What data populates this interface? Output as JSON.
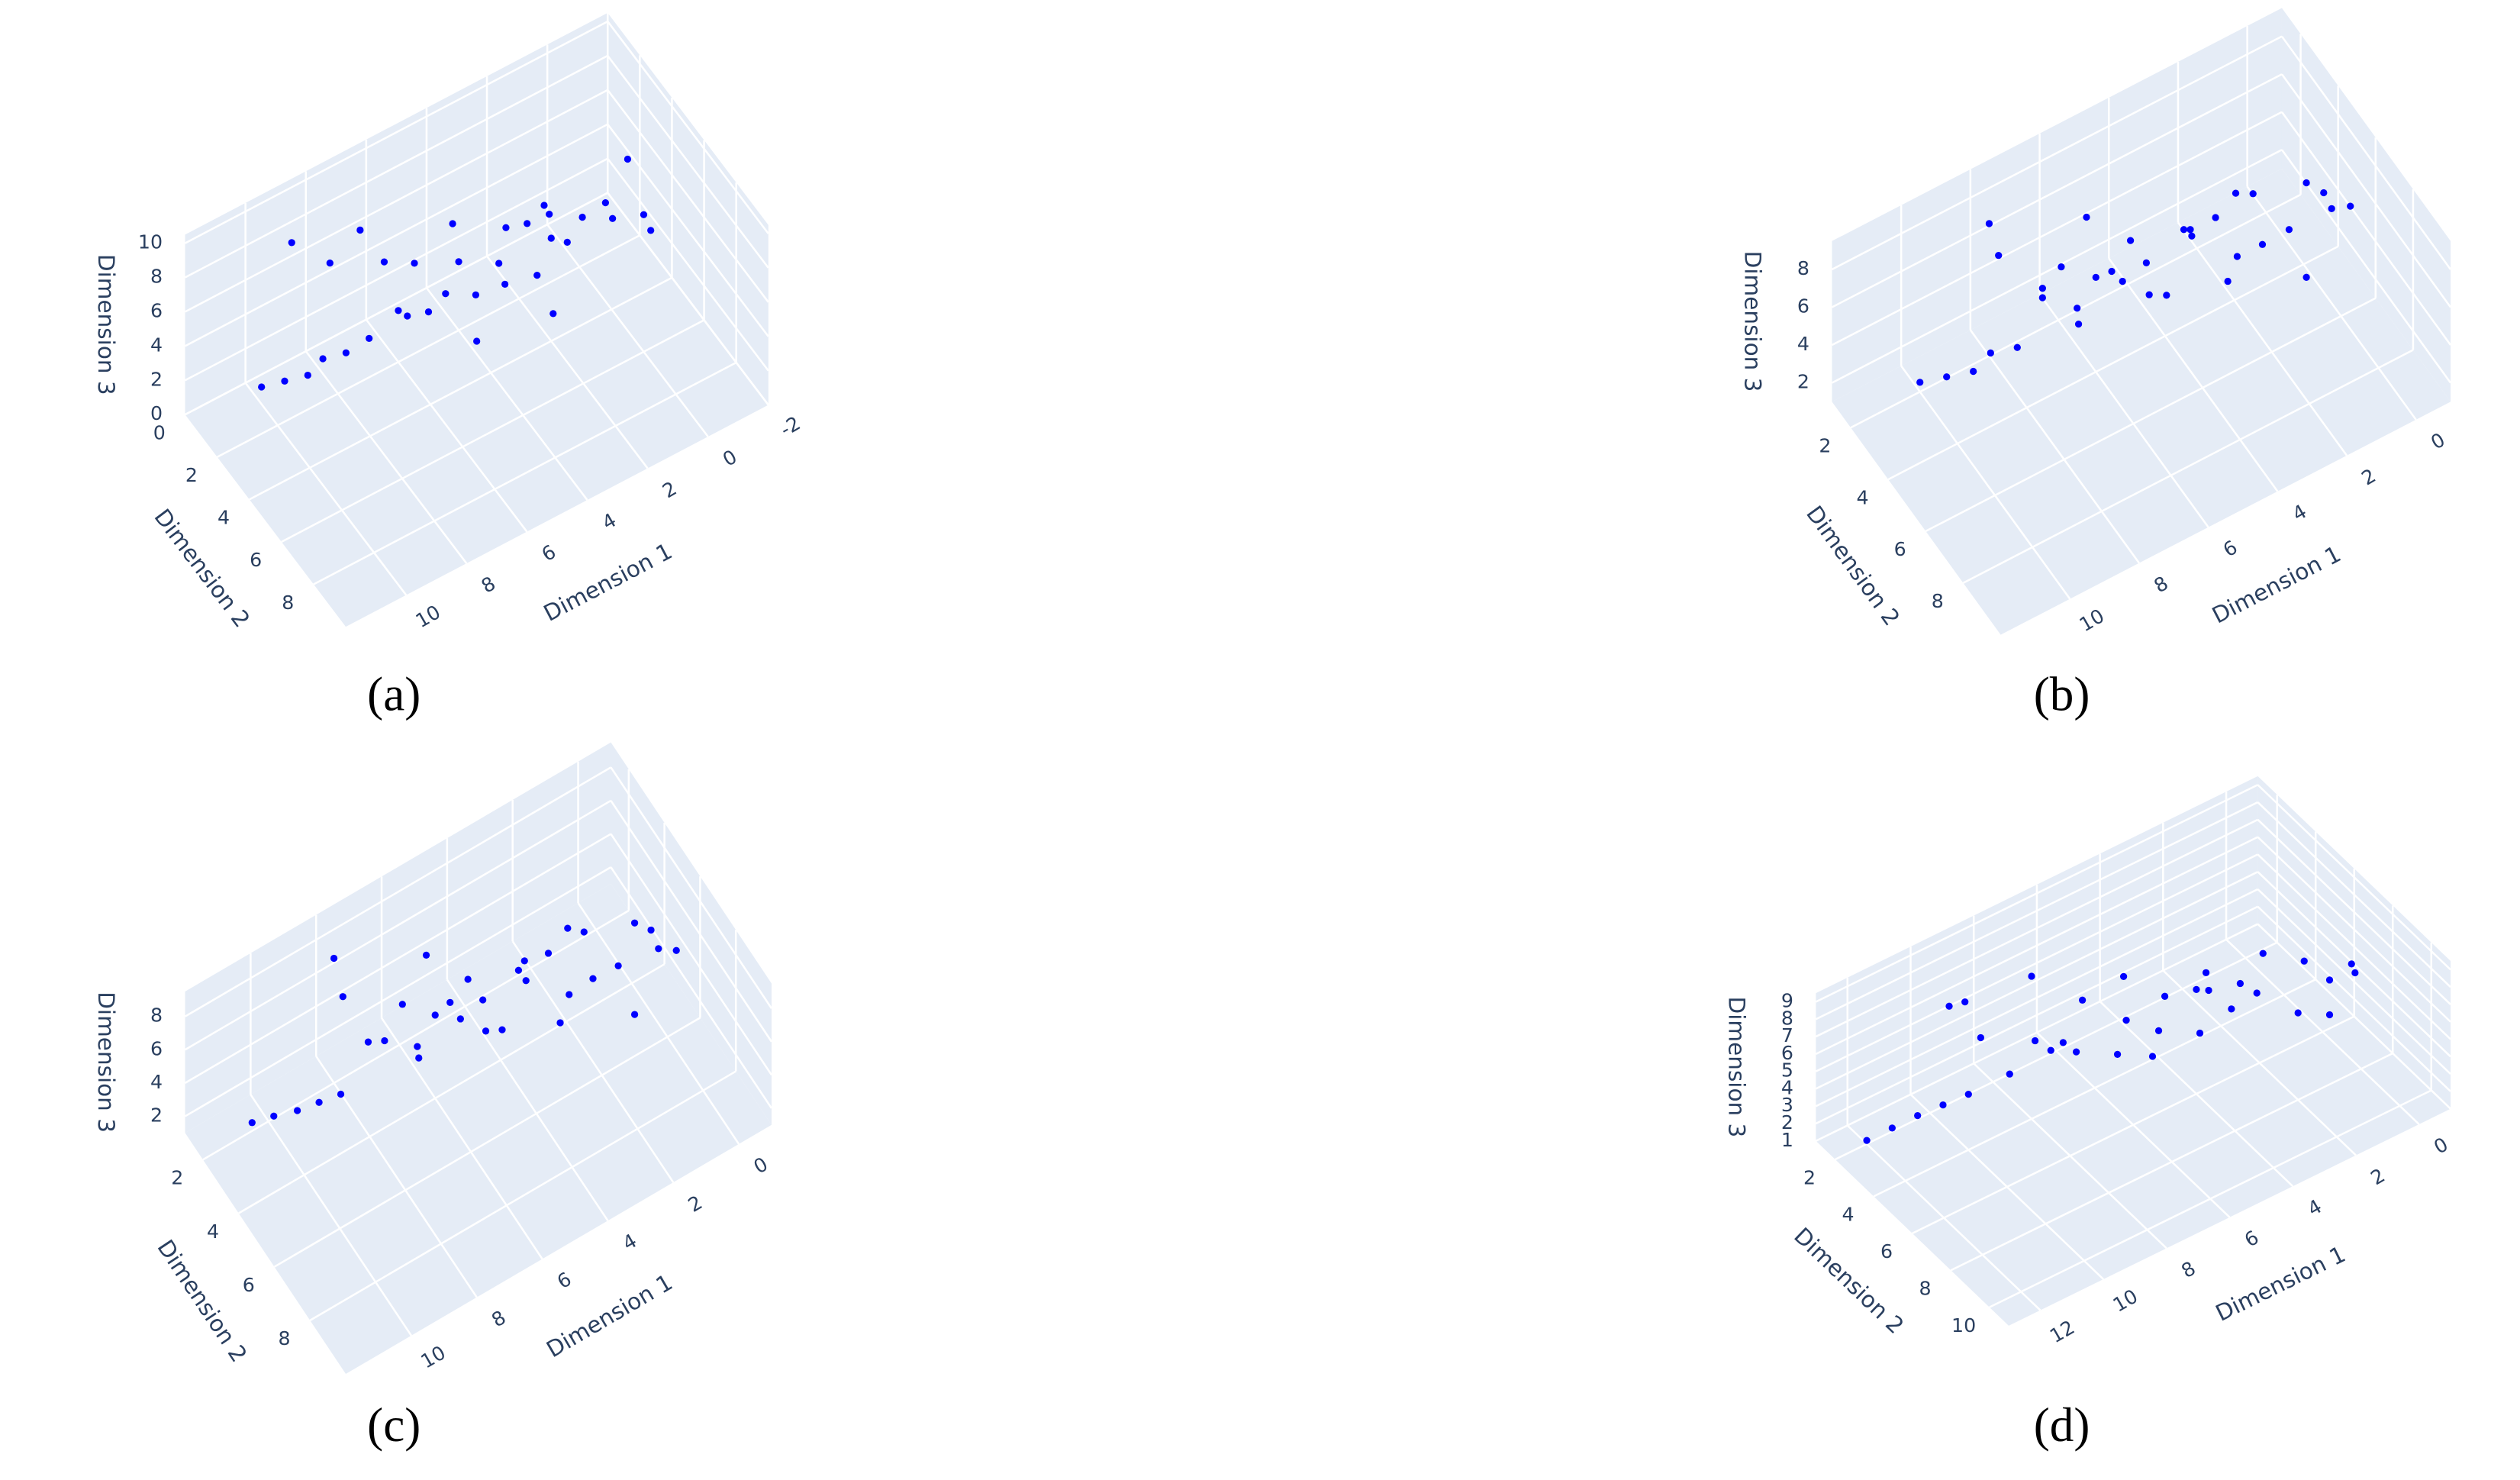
{
  "chart_data": [
    {
      "type": "scatter3d",
      "panel_label": "(a)",
      "x_title": "Dimension 1",
      "y_title": "Dimension 2",
      "z_title": "Dimension 3",
      "color": "#0000ff",
      "xlim": [
        -2,
        12
      ],
      "xticks": [
        -2,
        0,
        2,
        4,
        6,
        8,
        10
      ],
      "ylim": [
        0,
        10
      ],
      "yticks": [
        0,
        2,
        4,
        6,
        8
      ],
      "zlim": [
        0,
        10.5
      ],
      "zticks": [
        0,
        2,
        4,
        6,
        8,
        10
      ],
      "x": [
        10,
        9.5,
        9,
        8.5,
        8,
        9,
        7.5,
        7,
        6.5,
        6,
        5.5,
        5,
        4.5,
        4,
        3.5,
        3,
        2.5,
        2,
        1.5,
        1,
        0.5,
        0,
        0,
        -0.5,
        1,
        2,
        3,
        4,
        5,
        6,
        7,
        8,
        3,
        5,
        2
      ],
      "y": [
        1,
        1.5,
        2,
        2,
        2.5,
        1,
        3,
        3,
        3.5,
        3,
        4,
        3.5,
        4,
        4.5,
        4,
        5,
        4.5,
        5,
        5,
        5.5,
        5,
        6,
        5,
        5.5,
        2,
        2.5,
        3,
        2,
        2,
        2,
        1.5,
        1.5,
        6,
        5,
        4
      ],
      "z": [
        1,
        1.5,
        2,
        2.5,
        3,
        8.5,
        4,
        8,
        5,
        7,
        6,
        9,
        5,
        7,
        8,
        6,
        9,
        7,
        8,
        9,
        7,
        8,
        10,
        6,
        4,
        5,
        3,
        4,
        2,
        3,
        8,
        7,
        5,
        4,
        6
      ]
    },
    {
      "type": "scatter3d",
      "panel_label": "(b)",
      "x_title": "Dimension 1",
      "y_title": "Dimension 2",
      "z_title": "Dimension 3",
      "color": "#0000ff",
      "xlim": [
        -1,
        12
      ],
      "xticks": [
        0,
        2,
        4,
        6,
        8,
        10
      ],
      "ylim": [
        1,
        10
      ],
      "yticks": [
        2,
        4,
        6,
        8
      ],
      "zlim": [
        1,
        9.5
      ],
      "zticks": [
        2,
        4,
        6,
        8
      ],
      "x": [
        10,
        9.5,
        9,
        8.5,
        8,
        8,
        7,
        7,
        6.5,
        6,
        5.5,
        5,
        4.5,
        4,
        3.5,
        3,
        2.5,
        2,
        1.5,
        1,
        0.5,
        0,
        0,
        1,
        2,
        3,
        4,
        5,
        6,
        7,
        3,
        5,
        2,
        8,
        6
      ],
      "y": [
        2,
        2.5,
        3,
        3,
        3.5,
        2,
        3,
        4,
        4,
        3.5,
        4.5,
        4,
        5,
        5,
        4.5,
        5.5,
        5,
        5.5,
        6,
        6,
        6,
        6.5,
        5.5,
        6,
        3,
        3.5,
        3,
        3,
        3,
        3,
        6,
        5,
        5,
        2.5,
        4
      ],
      "z": [
        1.5,
        2,
        2.5,
        3,
        3.5,
        8,
        5,
        7.5,
        4,
        8.5,
        6,
        7,
        5,
        8,
        6.5,
        5,
        8.5,
        6,
        7,
        9,
        8,
        7.5,
        6,
        4,
        4,
        5,
        3.5,
        4,
        3,
        4.5,
        7,
        5.5,
        8,
        7,
        6
      ]
    },
    {
      "type": "scatter3d",
      "panel_label": "(c)",
      "x_title": "Dimension 1",
      "y_title": "Dimension 2",
      "z_title": "Dimension 3",
      "color": "#0000ff",
      "xlim": [
        -1,
        12
      ],
      "xticks": [
        0,
        2,
        4,
        6,
        8,
        10
      ],
      "ylim": [
        1,
        10
      ],
      "yticks": [
        2,
        4,
        6,
        8
      ],
      "zlim": [
        1,
        9.5
      ],
      "zticks": [
        2,
        4,
        6,
        8
      ],
      "x": [
        10.5,
        10,
        9.5,
        9,
        8.5,
        8,
        7.5,
        7,
        6.5,
        6,
        5.5,
        5,
        4.5,
        4,
        3.5,
        3,
        2.5,
        2,
        1.5,
        1,
        0.5,
        0,
        0,
        1,
        2,
        3,
        4,
        5,
        6,
        7,
        3,
        5,
        2,
        8,
        6
      ],
      "y": [
        2,
        2.3,
        2.7,
        3,
        3.3,
        2,
        3,
        4,
        4,
        3.5,
        4.5,
        4,
        5,
        5,
        4.5,
        5.5,
        5,
        5.5,
        6,
        6,
        6,
        6.5,
        5.5,
        6,
        3,
        3.5,
        3,
        3,
        3,
        3,
        6,
        5,
        5,
        2.5,
        4
      ],
      "z": [
        1.5,
        1.8,
        2.2,
        2.6,
        3,
        8.5,
        4.5,
        7.8,
        4,
        8.8,
        6,
        7,
        5,
        8,
        6,
        4.5,
        8.8,
        6,
        7,
        9,
        8,
        7,
        5.5,
        3.5,
        3.5,
        5,
        3,
        4,
        2.5,
        4,
        7,
        5.5,
        8,
        7,
        6
      ]
    },
    {
      "type": "scatter3d",
      "panel_label": "(d)",
      "x_title": "Dimension 1",
      "y_title": "Dimension 2",
      "z_title": "Dimension 3",
      "color": "#0000ff",
      "xlim": [
        -1,
        13
      ],
      "xticks": [
        0,
        2,
        4,
        6,
        8,
        10,
        12
      ],
      "ylim": [
        1,
        11
      ],
      "yticks": [
        2,
        4,
        6,
        8,
        10
      ],
      "zlim": [
        1,
        9.5
      ],
      "zticks": [
        1,
        2,
        3,
        4,
        5,
        6,
        7,
        8,
        9
      ],
      "x": [
        12,
        11.5,
        11,
        10.5,
        10,
        9.5,
        9,
        8.5,
        8,
        7.5,
        7,
        6.5,
        6,
        5.5,
        5,
        4.5,
        4,
        3.5,
        3,
        2.5,
        2,
        1.5,
        1,
        0.5,
        0,
        1,
        2,
        3,
        5,
        7,
        9,
        10,
        4,
        6,
        8
      ],
      "y": [
        2,
        2.5,
        3,
        3.5,
        4,
        3,
        4.5,
        5,
        4,
        5.5,
        5,
        6,
        5.5,
        6.5,
        6,
        7,
        6.5,
        7,
        7.5,
        7,
        8,
        7.5,
        8,
        8.5,
        7.5,
        8,
        5,
        5,
        4,
        4,
        3,
        3,
        6,
        7,
        5
      ],
      "z": [
        1.2,
        2,
        2.8,
        3.5,
        4.2,
        8,
        5,
        7,
        9.2,
        6,
        8,
        5.5,
        9,
        6.5,
        7.5,
        6,
        8.5,
        6.5,
        7.5,
        8.8,
        6,
        8,
        7,
        7.5,
        6.5,
        5,
        4.5,
        5,
        4,
        4.5,
        5.5,
        8.2,
        7,
        6,
        6
      ]
    }
  ]
}
